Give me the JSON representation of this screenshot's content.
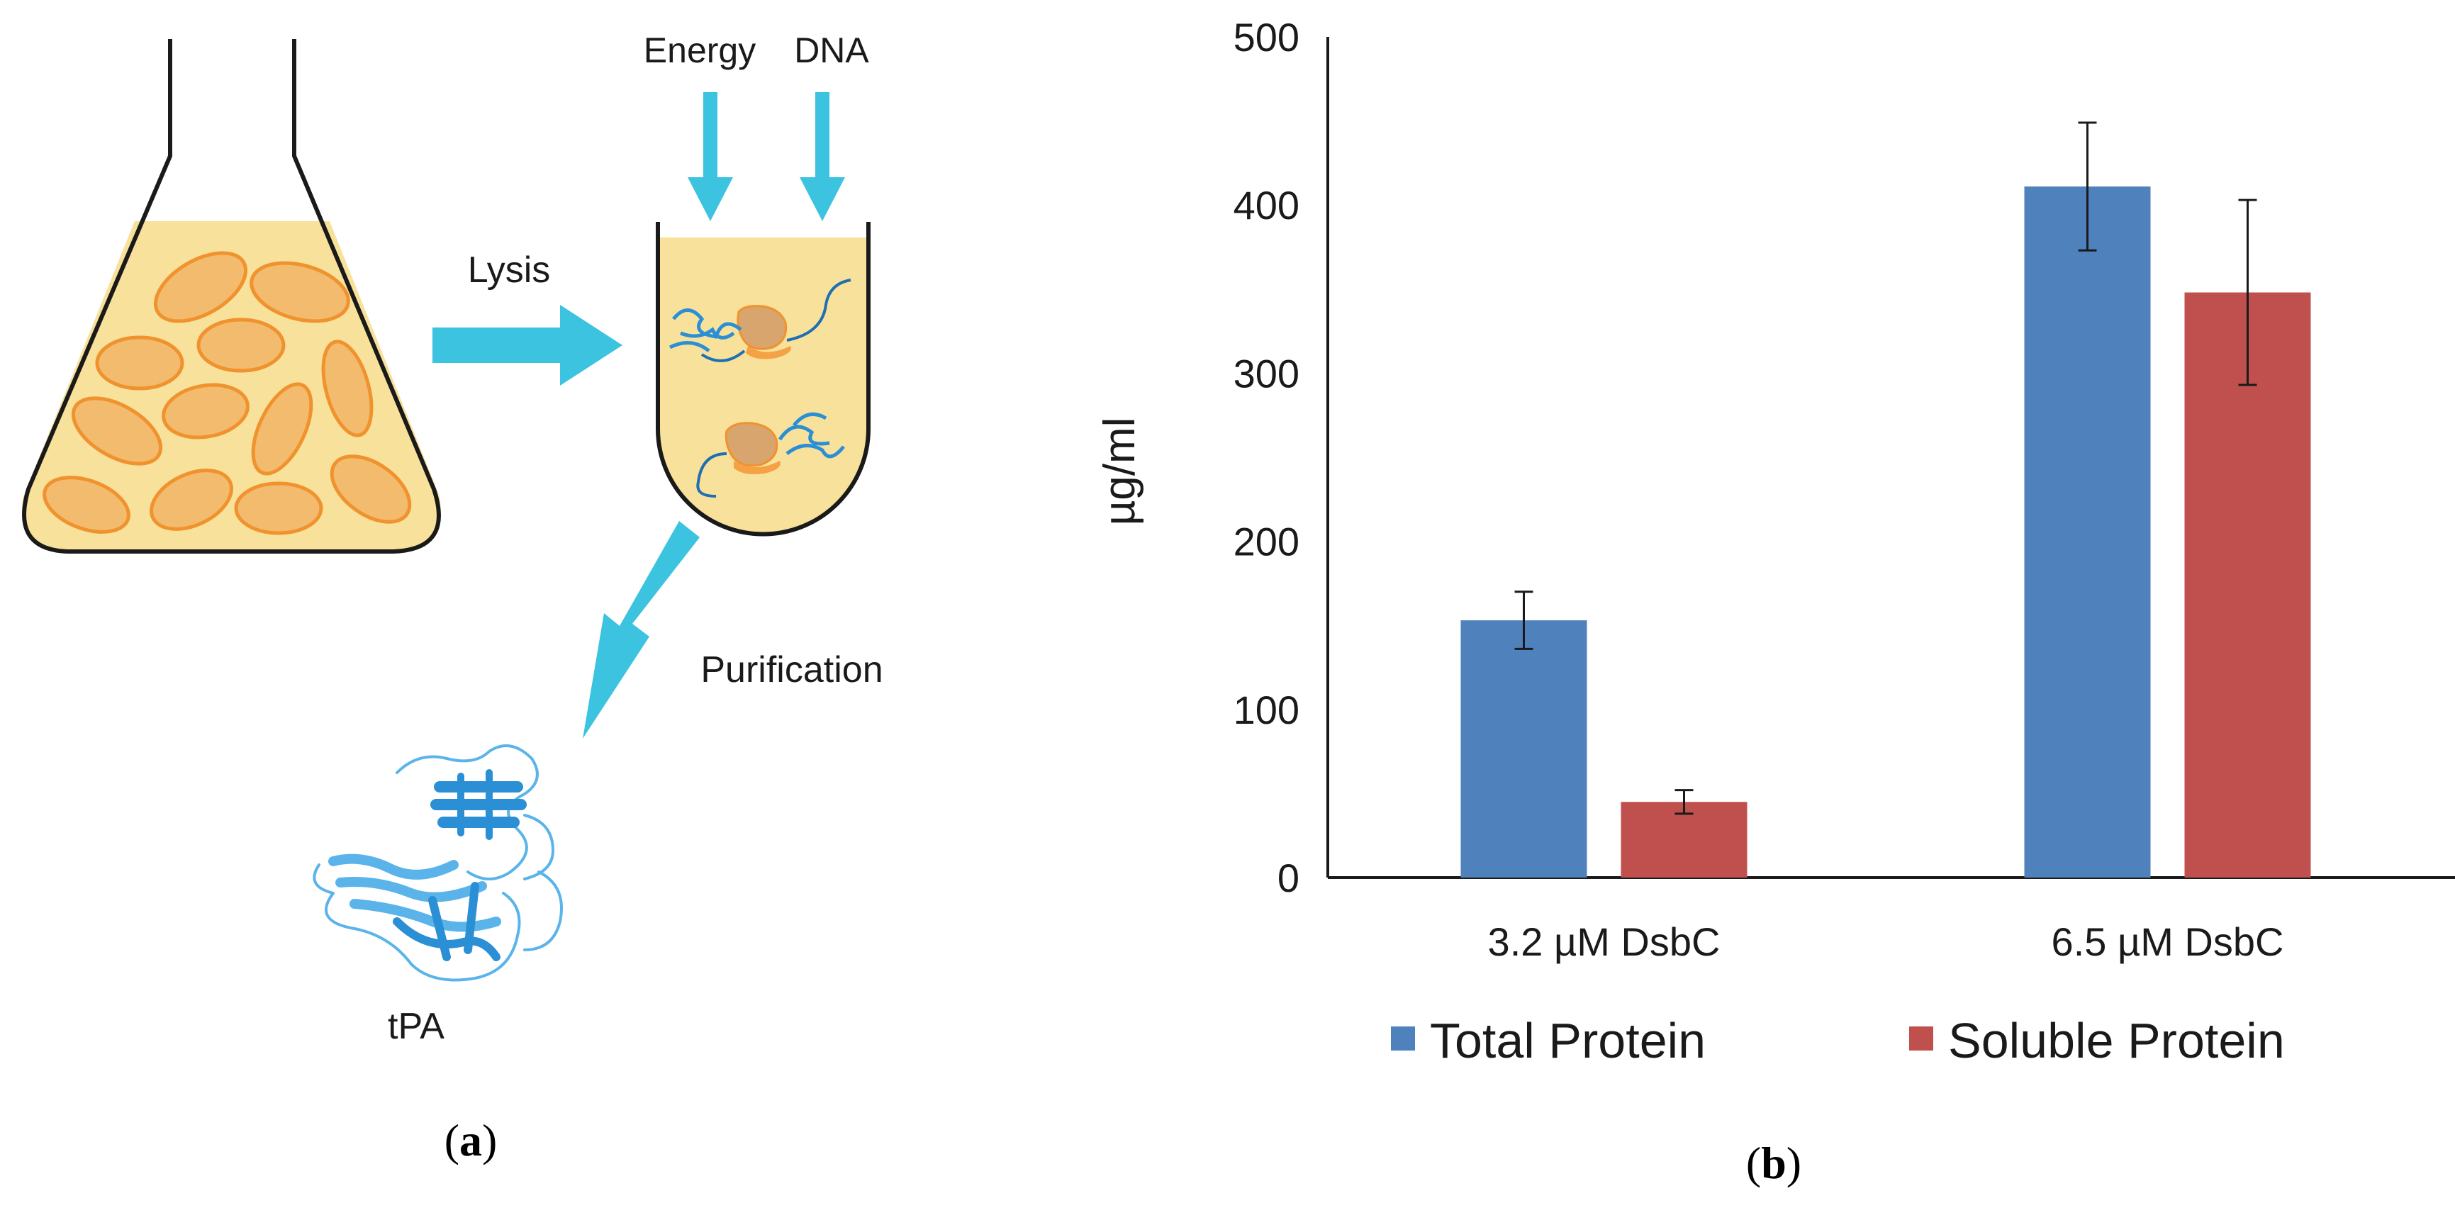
{
  "panel_a": {
    "energy_label": "Energy",
    "dna_label": "DNA",
    "lysis_label": "Lysis",
    "purification_label": "Purification",
    "protein_label": "tPA",
    "caption_letter": "a",
    "caption_open": "(",
    "caption_close": ")"
  },
  "panel_b": {
    "caption_letter": "b",
    "caption_open": "(",
    "caption_close": ")"
  },
  "colors": {
    "arrow": "#3cc3e0",
    "flask_fill": "#f8e19a",
    "cell_fill": "#f2bb6d",
    "cell_stroke": "#f0922e",
    "protein": "#2b8fd6",
    "ribosome": "#d9a56f",
    "total_series": "#4f81bd",
    "soluble_series": "#c0504d"
  },
  "chart_data": {
    "type": "bar",
    "title": "",
    "xlabel": "",
    "ylabel": "µg/ml",
    "ylim": [
      0,
      500
    ],
    "yticks": [
      0,
      100,
      200,
      300,
      400,
      500
    ],
    "categories": [
      "3.2 µM DsbC",
      "6.5 µM DsbC"
    ],
    "series": [
      {
        "name": "Total Protein",
        "values": [
          153,
          411
        ],
        "errors": [
          17,
          38
        ]
      },
      {
        "name": "Soluble Protein",
        "values": [
          45,
          348
        ],
        "errors": [
          7,
          55
        ]
      }
    ],
    "legend": "bottom",
    "grid": false
  }
}
